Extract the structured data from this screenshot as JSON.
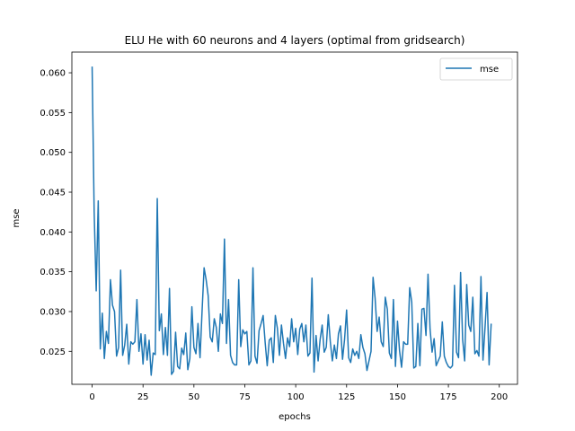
{
  "chart_data": {
    "type": "line",
    "title": "ELU He with 60 neurons and 4 layers (optimal from gridsearch)",
    "xlabel": "epochs",
    "ylabel": "mse",
    "xlim": [
      -9.95,
      208.95
    ],
    "ylim": [
      0.02086,
      0.0626
    ],
    "xticks": [
      0,
      25,
      50,
      75,
      100,
      125,
      150,
      175,
      200
    ],
    "yticks": [
      0.025,
      0.03,
      0.035,
      0.04,
      0.045,
      0.05,
      0.055,
      0.06
    ],
    "ytick_labels": [
      "0.025",
      "0.030",
      "0.035",
      "0.040",
      "0.045",
      "0.050",
      "0.055",
      "0.060"
    ],
    "grid": false,
    "legend": "top-right",
    "series": [
      {
        "name": "mse",
        "color": "#1f77b4",
        "values": [
          0.0607,
          0.0425,
          0.0326,
          0.0439,
          0.0253,
          0.0298,
          0.0241,
          0.0275,
          0.026,
          0.034,
          0.0308,
          0.03,
          0.0244,
          0.0255,
          0.0352,
          0.0245,
          0.0258,
          0.0284,
          0.0234,
          0.0262,
          0.0259,
          0.0262,
          0.0315,
          0.025,
          0.0272,
          0.0234,
          0.0271,
          0.0239,
          0.0264,
          0.022,
          0.0248,
          0.0246,
          0.0442,
          0.0276,
          0.0297,
          0.0246,
          0.028,
          0.0245,
          0.0329,
          0.0221,
          0.0225,
          0.0274,
          0.0231,
          0.0228,
          0.0254,
          0.0246,
          0.0273,
          0.0227,
          0.0241,
          0.0306,
          0.0255,
          0.0247,
          0.0285,
          0.0242,
          0.03,
          0.0355,
          0.034,
          0.032,
          0.0268,
          0.0262,
          0.0291,
          0.028,
          0.025,
          0.0297,
          0.0285,
          0.0391,
          0.026,
          0.0315,
          0.0245,
          0.0236,
          0.0233,
          0.0233,
          0.034,
          0.0256,
          0.0277,
          0.0272,
          0.0275,
          0.0233,
          0.0238,
          0.0355,
          0.0244,
          0.0235,
          0.0276,
          0.0285,
          0.0295,
          0.0261,
          0.0232,
          0.0264,
          0.0267,
          0.0236,
          0.0295,
          0.0279,
          0.0245,
          0.0283,
          0.026,
          0.0241,
          0.0267,
          0.0256,
          0.0291,
          0.0262,
          0.0279,
          0.0246,
          0.0278,
          0.0285,
          0.0262,
          0.0283,
          0.0244,
          0.0248,
          0.0342,
          0.0224,
          0.027,
          0.0238,
          0.0265,
          0.0283,
          0.0249,
          0.0255,
          0.0296,
          0.0262,
          0.0238,
          0.0258,
          0.0241,
          0.0272,
          0.0282,
          0.024,
          0.0265,
          0.0302,
          0.0242,
          0.0236,
          0.0253,
          0.0245,
          0.025,
          0.0241,
          0.0271,
          0.0255,
          0.0247,
          0.0226,
          0.0238,
          0.025,
          0.0343,
          0.0317,
          0.0275,
          0.0293,
          0.0262,
          0.0256,
          0.0318,
          0.0303,
          0.0248,
          0.0241,
          0.0315,
          0.0231,
          0.0288,
          0.0251,
          0.023,
          0.0262,
          0.0259,
          0.0259,
          0.033,
          0.0312,
          0.0229,
          0.0231,
          0.0285,
          0.0232,
          0.0303,
          0.0304,
          0.027,
          0.0347,
          0.0278,
          0.0249,
          0.0266,
          0.0232,
          0.0238,
          0.0244,
          0.0287,
          0.0244,
          0.0236,
          0.0231,
          0.0229,
          0.0232,
          0.0333,
          0.0249,
          0.0242,
          0.0349,
          0.0265,
          0.0238,
          0.0334,
          0.0283,
          0.0275,
          0.0318,
          0.0247,
          0.0251,
          0.0244,
          0.0344,
          0.0239,
          0.028,
          0.0324,
          0.0233,
          0.0284
        ]
      }
    ]
  }
}
